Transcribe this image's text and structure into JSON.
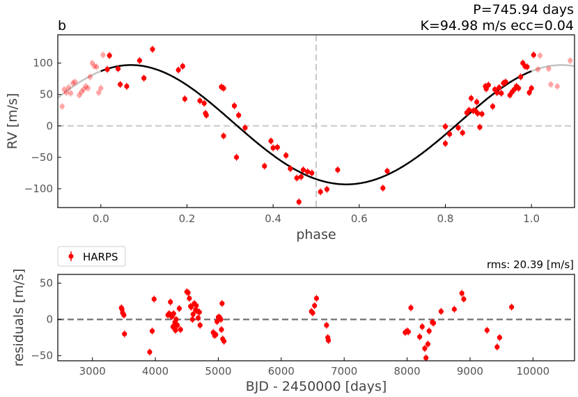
{
  "chart_data": [
    {
      "type": "scatter",
      "panel_label": "b",
      "title_line1": "P=745.94 days",
      "title_line2": "K=94.98 m/s  ecc=0.04",
      "xlabel": "phase",
      "ylabel": "RV [m/s]",
      "xlim": [
        -0.1,
        1.1
      ],
      "ylim": [
        -130,
        145
      ],
      "xticks": [
        0.0,
        0.2,
        0.4,
        0.6,
        0.8,
        1.0
      ],
      "xtick_labels": [
        "0.0",
        "0.2",
        "0.4",
        "0.6",
        "0.8",
        "1.0"
      ],
      "yticks": [
        -100,
        -50,
        0,
        50,
        100
      ],
      "ytick_labels": [
        "−100",
        "−50",
        "0",
        "50",
        "100"
      ],
      "reference_lines": {
        "horizontal_y": 0,
        "vertical_x": 0.5
      },
      "model": {
        "period_days": 745.94,
        "K": 94.98,
        "ecc": 0.04,
        "phase_of_max": 0.07
      },
      "series": [
        {
          "name": "HARPS",
          "color": "#ff0000",
          "points": [
            [
              0.015,
              90
            ],
            [
              0.02,
              112
            ],
            [
              0.04,
              91
            ],
            [
              0.045,
              66
            ],
            [
              0.06,
              63
            ],
            [
              0.09,
              104
            ],
            [
              0.1,
              76
            ],
            [
              0.12,
              122
            ],
            [
              0.18,
              89
            ],
            [
              0.19,
              95
            ],
            [
              0.195,
              43
            ],
            [
              0.23,
              40
            ],
            [
              0.24,
              36
            ],
            [
              0.243,
              20
            ],
            [
              0.245,
              17
            ],
            [
              0.28,
              62
            ],
            [
              0.285,
              60
            ],
            [
              0.285,
              -16
            ],
            [
              0.31,
              32
            ],
            [
              0.315,
              -50
            ],
            [
              0.32,
              17
            ],
            [
              0.335,
              -3
            ],
            [
              0.38,
              -64
            ],
            [
              0.395,
              -24
            ],
            [
              0.4,
              -35
            ],
            [
              0.41,
              -34
            ],
            [
              0.43,
              -47
            ],
            [
              0.44,
              -68
            ],
            [
              0.455,
              -83
            ],
            [
              0.46,
              -121
            ],
            [
              0.465,
              -81
            ],
            [
              0.47,
              -70
            ],
            [
              0.48,
              -73
            ],
            [
              0.49,
              -75
            ],
            [
              0.51,
              -105
            ],
            [
              0.525,
              -101
            ],
            [
              0.55,
              -70
            ],
            [
              0.655,
              -99
            ],
            [
              0.665,
              -72
            ],
            [
              0.8,
              -1
            ],
            [
              0.8,
              -28
            ],
            [
              0.81,
              -13
            ],
            [
              0.83,
              -3
            ],
            [
              0.84,
              -11
            ],
            [
              0.85,
              21
            ],
            [
              0.855,
              25
            ],
            [
              0.86,
              44
            ],
            [
              0.865,
              24
            ],
            [
              0.87,
              24
            ],
            [
              0.873,
              38
            ],
            [
              0.875,
              20
            ],
            [
              0.88,
              -2
            ],
            [
              0.885,
              19
            ],
            [
              0.893,
              63
            ],
            [
              0.895,
              59
            ],
            [
              0.9,
              65
            ],
            [
              0.91,
              31
            ],
            [
              0.915,
              58
            ],
            [
              0.92,
              53
            ],
            [
              0.925,
              61
            ],
            [
              0.93,
              52
            ],
            [
              0.935,
              68
            ],
            [
              0.94,
              70
            ],
            [
              0.95,
              49
            ],
            [
              0.955,
              54
            ],
            [
              0.96,
              58
            ],
            [
              0.965,
              63
            ],
            [
              0.97,
              60
            ],
            [
              0.975,
              78
            ],
            [
              0.98,
              100
            ],
            [
              0.985,
              95
            ],
            [
              0.99,
              94
            ],
            [
              0.995,
              53
            ],
            [
              1.0,
              60
            ],
            [
              1.005,
              113
            ]
          ]
        }
      ]
    },
    {
      "type": "scatter",
      "legend_label": "HARPS",
      "rms_label": "rms: 20.39 [m/s]",
      "xlabel": "BJD - 2450000 [days]",
      "ylabel": "residuals [m/s]",
      "xlim": [
        2450,
        10660
      ],
      "ylim": [
        -57,
        62
      ],
      "xticks": [
        3000,
        4000,
        5000,
        6000,
        7000,
        8000,
        9000,
        10000
      ],
      "xtick_labels": [
        "3000",
        "4000",
        "5000",
        "6000",
        "7000",
        "8000",
        "9000",
        "10000"
      ],
      "yticks": [
        -50,
        0,
        50
      ],
      "ytick_labels": [
        "−50",
        "0",
        "50"
      ],
      "reference_lines": {
        "horizontal_y": 0
      },
      "series": [
        {
          "name": "HARPS",
          "color": "#ff0000",
          "points": [
            [
              3460,
              16
            ],
            [
              3470,
              14
            ],
            [
              3480,
              9
            ],
            [
              3500,
              6
            ],
            [
              3510,
              -20
            ],
            [
              3910,
              -45
            ],
            [
              3950,
              -16
            ],
            [
              3980,
              28
            ],
            [
              4200,
              6
            ],
            [
              4220,
              8
            ],
            [
              4240,
              24
            ],
            [
              4260,
              4
            ],
            [
              4270,
              5
            ],
            [
              4280,
              -10
            ],
            [
              4290,
              8
            ],
            [
              4300,
              -12
            ],
            [
              4310,
              -4
            ],
            [
              4320,
              -15
            ],
            [
              4330,
              0
            ],
            [
              4350,
              -8
            ],
            [
              4380,
              15
            ],
            [
              4400,
              -14
            ],
            [
              4500,
              38
            ],
            [
              4520,
              37
            ],
            [
              4540,
              29
            ],
            [
              4560,
              18
            ],
            [
              4570,
              17
            ],
            [
              4590,
              0
            ],
            [
              4600,
              7
            ],
            [
              4620,
              22
            ],
            [
              4640,
              13
            ],
            [
              4650,
              19
            ],
            [
              4660,
              12
            ],
            [
              4680,
              2
            ],
            [
              4700,
              10
            ],
            [
              4710,
              -8
            ],
            [
              4920,
              -18
            ],
            [
              4940,
              -22
            ],
            [
              4960,
              -21
            ],
            [
              4980,
              -3
            ],
            [
              5000,
              3
            ],
            [
              5020,
              3
            ],
            [
              5040,
              0
            ],
            [
              5050,
              -14
            ],
            [
              5060,
              22
            ],
            [
              5070,
              -27
            ],
            [
              5090,
              -30
            ],
            [
              6480,
              11
            ],
            [
              6500,
              9
            ],
            [
              6530,
              19
            ],
            [
              6560,
              29
            ],
            [
              6720,
              -8
            ],
            [
              6740,
              -25
            ],
            [
              6750,
              -29
            ],
            [
              7970,
              -18
            ],
            [
              8000,
              -16
            ],
            [
              8020,
              -17
            ],
            [
              8060,
              16
            ],
            [
              8200,
              -24
            ],
            [
              8240,
              -10
            ],
            [
              8280,
              -40
            ],
            [
              8300,
              -53
            ],
            [
              8330,
              -34
            ],
            [
              8350,
              -16
            ],
            [
              8400,
              -4
            ],
            [
              8420,
              -5
            ],
            [
              8540,
              11
            ],
            [
              8750,
              14
            ],
            [
              8870,
              36
            ],
            [
              8900,
              28
            ],
            [
              9270,
              -15
            ],
            [
              9430,
              -38
            ],
            [
              9470,
              -25
            ],
            [
              9660,
              17
            ]
          ]
        }
      ]
    }
  ]
}
